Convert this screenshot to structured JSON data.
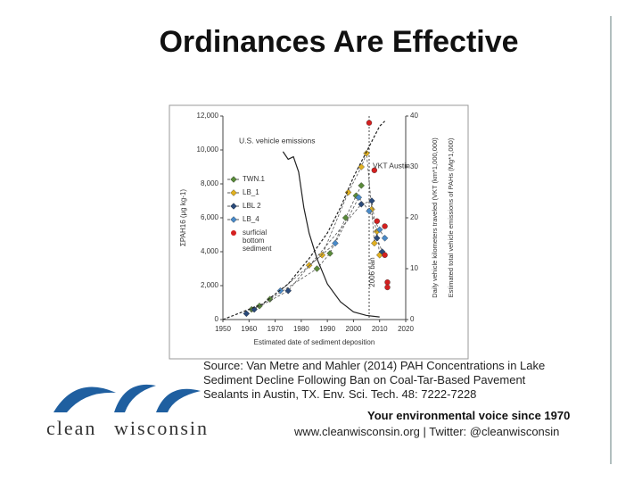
{
  "slide": {
    "title": "Ordinances Are Effective",
    "source": "Source: Van Metre and Mahler (2014) PAH Concentrations in Lake Sediment Decline Following Ban on Coal-Tar-Based Pavement Sealants in Austin, TX. Env. Sci. Tech. 48: 7222-7228",
    "tagline": "Your environmental voice since 1970",
    "website": "www.cleanwisconsin.org  |  Twitter: @cleanwisconsin",
    "logo_clean": "clean",
    "logo_wisconsin": "wisconsin"
  },
  "chart_data": {
    "type": "line",
    "x_label": "Estimated date of sediment deposition",
    "y_label": "ΣPAH16 (μg kg-1)",
    "y2_labels": [
      "Daily vehicle kilometers traveled (VKT (km*1,000,000)",
      "Estimated total vehicle emissions of PAHs (Mg*1,000)"
    ],
    "annotation": "2006 ban",
    "ban_year": 2006,
    "xlim": [
      1950,
      2020
    ],
    "xticks": [
      1950,
      1960,
      1970,
      1980,
      1990,
      2000,
      2010,
      2020
    ],
    "ylim": [
      0,
      12000
    ],
    "yticks": [
      0,
      {
        "value": 2000,
        "label": "2,000"
      },
      {
        "value": 4000,
        "label": "4,000"
      },
      {
        "value": 6000,
        "label": "6,000"
      },
      {
        "value": 8000,
        "label": "8,000"
      },
      {
        "value": 10000,
        "label": "10,000"
      },
      {
        "value": 12000,
        "label": "12,000"
      }
    ],
    "y2lim": [
      0,
      40
    ],
    "y2ticks": [
      0,
      10,
      20,
      30,
      40
    ],
    "series": [
      {
        "name": "TWN.1",
        "color": "#5a8a3a",
        "marker": "diamond",
        "line": true,
        "x": [
          1961,
          1964,
          1968,
          1986,
          1991,
          1997,
          2001,
          2003
        ],
        "values": [
          600,
          800,
          1200,
          3000,
          3900,
          6000,
          7300,
          7900
        ]
      },
      {
        "name": "LB_1",
        "color": "#e0b020",
        "marker": "diamond",
        "line": true,
        "x": [
          1983,
          1988,
          1998,
          2003,
          2005,
          2007,
          2008,
          2009,
          2010
        ],
        "values": [
          3200,
          3800,
          7500,
          9000,
          9800,
          6500,
          4500,
          5200,
          3800
        ]
      },
      {
        "name": "LBL 2",
        "color": "#2a4a7a",
        "marker": "diamond",
        "line": true,
        "x": [
          1959,
          1962,
          1975,
          2003,
          2007,
          2009,
          2011
        ],
        "values": [
          350,
          600,
          1700,
          6800,
          7000,
          4800,
          4000
        ]
      },
      {
        "name": "LB_4",
        "color": "#4a8ac8",
        "marker": "diamond",
        "line": true,
        "x": [
          1972,
          1993,
          2002,
          2006,
          2010,
          2012
        ],
        "values": [
          1700,
          4500,
          7200,
          6400,
          5300,
          4800
        ]
      },
      {
        "name": "surficial bottom sediment",
        "color": "#d42020",
        "marker": "circle",
        "line": false,
        "x": [
          2006,
          2008,
          2009,
          2012,
          2012,
          2013,
          2013
        ],
        "values": [
          11600,
          8800,
          5800,
          5500,
          3800,
          2200,
          1900
        ]
      },
      {
        "name": "U.S. vehicle emissions",
        "color": "#222222",
        "marker": null,
        "line": true,
        "axis": "y2",
        "x": [
          1973,
          1975,
          1977,
          1979,
          1981,
          1983,
          1986,
          1990,
          1995,
          2000,
          2005,
          2010
        ],
        "values": [
          33,
          31.5,
          32,
          29,
          22,
          17,
          12,
          7,
          3.5,
          1.5,
          0.8,
          0.5
        ]
      },
      {
        "name": "VKT Austin",
        "color": "#222222",
        "marker": null,
        "line": true,
        "dash": true,
        "axis": "y2",
        "x": [
          1950,
          1955,
          1965,
          1975,
          1983,
          1990,
          1995,
          2000,
          2005,
          2008,
          2010,
          2012
        ],
        "values": [
          0,
          1,
          3,
          7,
          12,
          17,
          22,
          28,
          33,
          36,
          38,
          39
        ]
      }
    ]
  }
}
